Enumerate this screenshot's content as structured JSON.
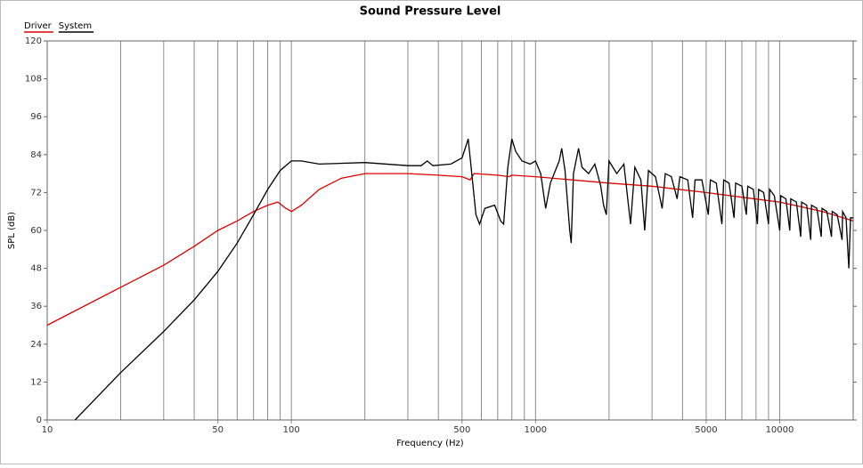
{
  "chart_data": {
    "type": "line",
    "title": "Sound Pressure Level",
    "xlabel": "Frequency (Hz)",
    "ylabel": "SPL (dB)",
    "xscale": "log",
    "xlim": [
      10,
      20000
    ],
    "ylim": [
      0,
      120
    ],
    "xticks": [
      10,
      50,
      100,
      500,
      1000,
      5000,
      10000
    ],
    "xgrid": [
      20,
      30,
      40,
      60,
      70,
      80,
      90,
      200,
      300,
      400,
      600,
      700,
      800,
      900,
      2000,
      3000,
      4000,
      6000,
      7000,
      8000,
      9000,
      20000
    ],
    "yticks": [
      0,
      12,
      24,
      36,
      48,
      60,
      72,
      84,
      96,
      108,
      120
    ],
    "legend": "top-left",
    "series": [
      {
        "name": "Driver",
        "color": "#e00000",
        "x": [
          10,
          20,
          30,
          40,
          50,
          60,
          70,
          80,
          88,
          95,
          100,
          110,
          130,
          160,
          200,
          300,
          400,
          500,
          540,
          560,
          700,
          780,
          800,
          1000,
          2000,
          3000,
          5000,
          7000,
          10000,
          15000,
          20000
        ],
        "values": [
          30,
          42,
          49,
          55,
          60,
          63,
          66,
          68,
          69,
          67,
          66,
          68,
          73,
          76.5,
          78,
          78,
          77.5,
          77,
          76,
          78,
          77.5,
          77,
          77.5,
          77,
          75,
          74,
          72,
          70.5,
          69,
          66,
          63
        ]
      },
      {
        "name": "System",
        "color": "#000000",
        "x": [
          13,
          15,
          20,
          30,
          40,
          50,
          60,
          70,
          80,
          90,
          100,
          110,
          130,
          200,
          300,
          340,
          360,
          380,
          450,
          500,
          520,
          530,
          545,
          570,
          590,
          620,
          680,
          720,
          740,
          770,
          800,
          830,
          880,
          950,
          1000,
          1050,
          1100,
          1150,
          1250,
          1280,
          1320,
          1380,
          1400,
          1430,
          1500,
          1550,
          1650,
          1750,
          1850,
          1900,
          1950,
          2000,
          2150,
          2300,
          2450,
          2550,
          2700,
          2800,
          2900,
          3100,
          3300,
          3400,
          3600,
          3800,
          3900,
          4200,
          4400,
          4500,
          4800,
          5100,
          5200,
          5500,
          5800,
          5900,
          6200,
          6500,
          6600,
          7000,
          7300,
          7400,
          7800,
          8100,
          8200,
          8600,
          9000,
          9100,
          9500,
          10000,
          10100,
          10600,
          11000,
          11100,
          11700,
          12200,
          12300,
          12900,
          13400,
          13500,
          14200,
          14800,
          14900,
          15600,
          16300,
          16400,
          17200,
          18000,
          18100,
          18700,
          19200,
          19500,
          20000
        ],
        "values": [
          0,
          5,
          15,
          28,
          38,
          47,
          56,
          65,
          73,
          79,
          82,
          82,
          81,
          81.5,
          80.5,
          80.5,
          82,
          80.5,
          81,
          83,
          87,
          89,
          80,
          65,
          62,
          67,
          68,
          63,
          62,
          80,
          89,
          85,
          82,
          81,
          82,
          78,
          67,
          75,
          82,
          86,
          79,
          60,
          56,
          78,
          86,
          80,
          78,
          81,
          74,
          68,
          65,
          82,
          78,
          81,
          62,
          80,
          76,
          60,
          79,
          77,
          67,
          78,
          77,
          70,
          77,
          76,
          64,
          76,
          76,
          65,
          76,
          75,
          62,
          76,
          75,
          64,
          75,
          74,
          65,
          74,
          73,
          62,
          73,
          72,
          62,
          73,
          71,
          60,
          71,
          70,
          60,
          70,
          69,
          58,
          69,
          68,
          57,
          68,
          67,
          58,
          67,
          66,
          58,
          66,
          65,
          57,
          66,
          64,
          48,
          64,
          64
        ]
      }
    ]
  }
}
